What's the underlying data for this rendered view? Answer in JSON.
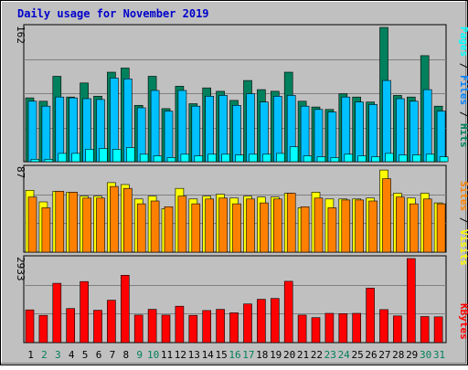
{
  "title": "Daily usage for November 2019",
  "colors": {
    "title": "#0000cc",
    "background": "#c0c0c0",
    "frame": "#cccccc",
    "hits": "#00805c",
    "files": "#00c0ff",
    "pages": "#00ffff",
    "visits": "#ffff00",
    "sites": "#ff8000",
    "kbytes": "#ff0000",
    "weekday": "#000000",
    "weekend": "#00805c"
  },
  "labels": {
    "hits": "Hits",
    "files": "Files",
    "pages": "Pages",
    "visits": "Visits",
    "sites": "Sites",
    "kbytes": "KBytes",
    "sep": " / "
  },
  "chart_data": {
    "type": "bar",
    "grid": true,
    "x": [
      "1",
      "2",
      "3",
      "4",
      "5",
      "6",
      "7",
      "8",
      "9",
      "10",
      "11",
      "12",
      "13",
      "14",
      "15",
      "16",
      "17",
      "18",
      "19",
      "20",
      "21",
      "22",
      "23",
      "24",
      "25",
      "26",
      "27",
      "28",
      "29",
      "30",
      "31"
    ],
    "weekend_days": [
      "2",
      "3",
      "9",
      "10",
      "16",
      "17",
      "23",
      "24",
      "30",
      "31"
    ],
    "panels": [
      {
        "id": "hits-files-pages",
        "ymax_label": "162",
        "ylim": [
          0,
          162
        ],
        "series": [
          {
            "name": "Hits",
            "values": [
              77,
              73,
              103,
              78,
              95,
              79,
              108,
              113,
              68,
              103,
              64,
              91,
              70,
              89,
              85,
              74,
              98,
              87,
              85,
              108,
              73,
              66,
              63,
              82,
              78,
              72,
              162,
              80,
              78,
              128,
              67
            ]
          },
          {
            "name": "Files",
            "values": [
              73,
              67,
              78,
              77,
              76,
              75,
              101,
              100,
              65,
              86,
              61,
              86,
              67,
              79,
              80,
              68,
              82,
              72,
              79,
              80,
              67,
              63,
              60,
              78,
              72,
              69,
              98,
              76,
              73,
              87,
              61
            ]
          },
          {
            "name": "Pages",
            "values": [
              3,
              3,
              10,
              10,
              15,
              16,
              15,
              17,
              9,
              7,
              5,
              9,
              7,
              9,
              9,
              8,
              9,
              9,
              10,
              18,
              7,
              6,
              5,
              9,
              7,
              6,
              10,
              8,
              8,
              9,
              6
            ]
          }
        ]
      },
      {
        "id": "visits-sites",
        "ymax_label": "87",
        "ylim": [
          0,
          87
        ],
        "series": [
          {
            "name": "Visits",
            "values": [
              64,
              52,
              63,
              62,
              58,
              58,
              72,
              70,
              55,
              58,
              45,
              66,
              55,
              58,
              60,
              56,
              58,
              57,
              57,
              61,
              46,
              62,
              55,
              55,
              55,
              56,
              85,
              61,
              56,
              61,
              51
            ]
          },
          {
            "name": "Sites",
            "values": [
              57,
              46,
              63,
              62,
              56,
              56,
              68,
              66,
              50,
              53,
              47,
              58,
              50,
              55,
              56,
              50,
              55,
              51,
              55,
              61,
              47,
              56,
              46,
              54,
              54,
              53,
              76,
              57,
              50,
              55,
              50
            ]
          }
        ]
      },
      {
        "id": "kbytes",
        "ymax_label": "2933",
        "ylim": [
          0,
          2933
        ],
        "series": [
          {
            "name": "KBytes",
            "values": [
              1140,
              950,
              2070,
              1190,
              2130,
              1130,
              1480,
              2350,
              960,
              1160,
              960,
              1270,
              950,
              1120,
              1160,
              1040,
              1350,
              1510,
              1540,
              2140,
              960,
              870,
              1020,
              1010,
              1020,
              1900,
              1150,
              930,
              2933,
              910,
              900
            ]
          }
        ]
      }
    ]
  }
}
